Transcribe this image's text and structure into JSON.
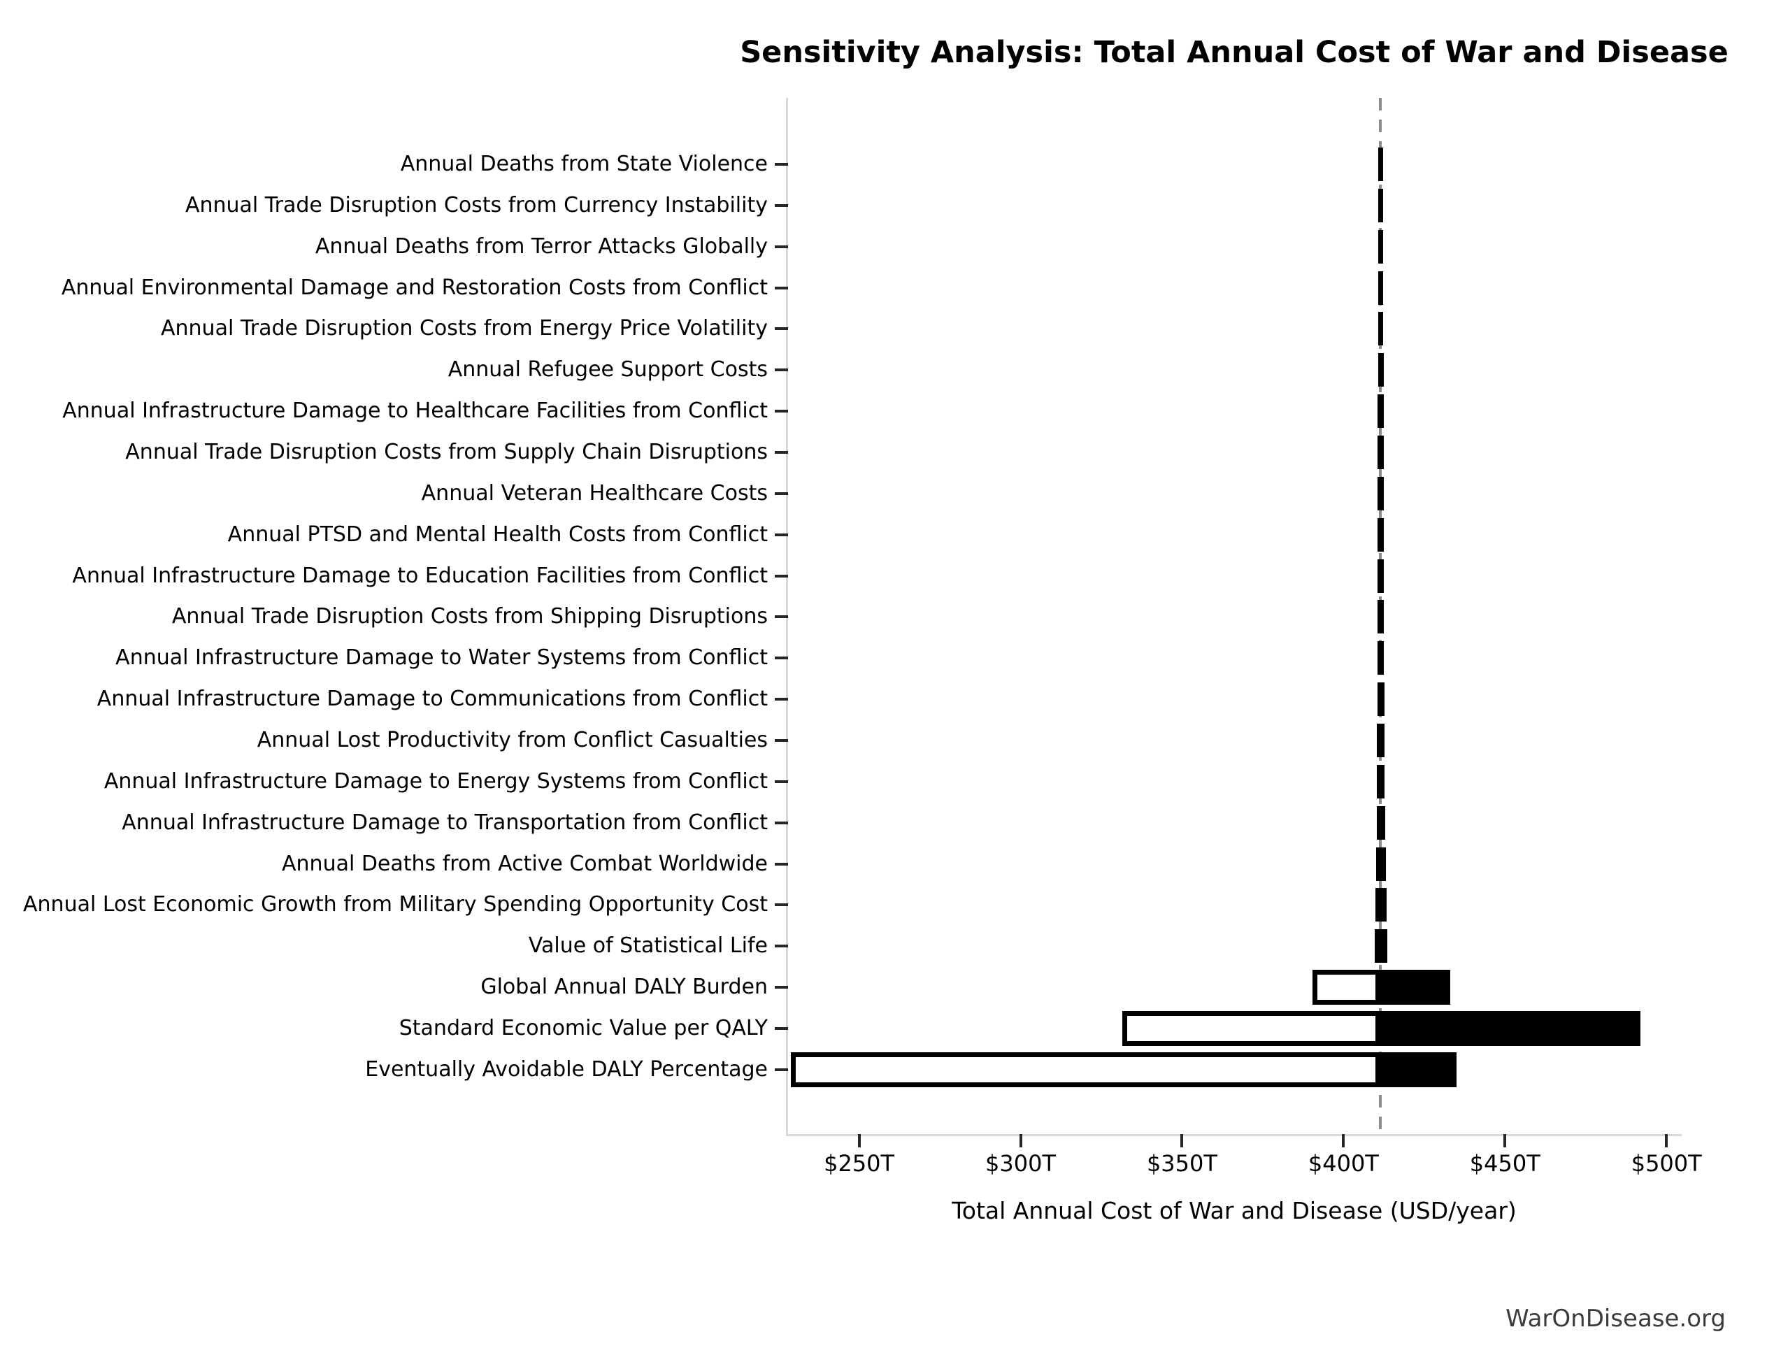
{
  "title": "Sensitivity Analysis: Total Annual Cost of War and Disease",
  "watermark": "WarOnDisease.org",
  "chart_data": {
    "type": "bar",
    "subtype": "tornado-sensitivity",
    "orientation": "horizontal",
    "title": "Sensitivity Analysis: Total Annual Cost of War and Disease",
    "xlabel": "Total Annual Cost of War and Disease (USD/year)",
    "x_unit": "trillion USD per year",
    "xlim": [
      228,
      504.5
    ],
    "x_ticks": [
      250,
      300,
      350,
      400,
      450,
      500
    ],
    "x_tick_labels": [
      "$250T",
      "$300T",
      "$350T",
      "$400T",
      "$450T",
      "$500T"
    ],
    "baseline_value": 411.5,
    "baseline_style": "dashed",
    "grid": false,
    "legend": "none",
    "colors": {
      "low_fill": "#ffffff",
      "high_fill": "#000000",
      "bar_edge": "#000000",
      "baseline_line": "#8c8c8c",
      "spine": "#d9d9d9",
      "tick": "#262626",
      "text": "#000000",
      "watermark_text": "#3c3c3c"
    },
    "categories": [
      {
        "label": "Annual Deaths from State Violence",
        "low": 410.8,
        "high": 412.2
      },
      {
        "label": "Annual Trade Disruption Costs from Currency Instability",
        "low": 410.8,
        "high": 412.3
      },
      {
        "label": "Annual Deaths from Terror Attacks Globally",
        "low": 410.7,
        "high": 412.3
      },
      {
        "label": "Annual Environmental Damage and Restoration Costs from Conflict",
        "low": 410.7,
        "high": 412.3
      },
      {
        "label": "Annual Trade Disruption Costs from Energy Price Volatility",
        "low": 410.7,
        "high": 412.3
      },
      {
        "label": "Annual Refugee Support Costs",
        "low": 410.7,
        "high": 412.4
      },
      {
        "label": "Annual Infrastructure Damage to Healthcare Facilities from Conflict",
        "low": 410.6,
        "high": 412.4
      },
      {
        "label": "Annual Trade Disruption Costs from Supply Chain Disruptions",
        "low": 410.6,
        "high": 412.4
      },
      {
        "label": "Annual Veteran Healthcare Costs",
        "low": 410.6,
        "high": 412.4
      },
      {
        "label": "Annual PTSD and Mental Health Costs from Conflict",
        "low": 410.6,
        "high": 412.5
      },
      {
        "label": "Annual Infrastructure Damage to Education Facilities from Conflict",
        "low": 410.5,
        "high": 412.5
      },
      {
        "label": "Annual Trade Disruption Costs from Shipping Disruptions",
        "low": 410.5,
        "high": 412.5
      },
      {
        "label": "Annual Infrastructure Damage to Water Systems from Conflict",
        "low": 410.5,
        "high": 412.5
      },
      {
        "label": "Annual Infrastructure Damage to Communications from Conflict",
        "low": 410.5,
        "high": 412.6
      },
      {
        "label": "Annual Lost Productivity from Conflict Casualties",
        "low": 410.4,
        "high": 412.6
      },
      {
        "label": "Annual Infrastructure Damage to Energy Systems from Conflict",
        "low": 410.4,
        "high": 412.6
      },
      {
        "label": "Annual Infrastructure Damage to Transportation from Conflict",
        "low": 410.3,
        "high": 412.9
      },
      {
        "label": "Annual Deaths from Active Combat Worldwide",
        "low": 410.2,
        "high": 413.1
      },
      {
        "label": "Annual Lost Economic Growth from Military Spending Opportunity Cost",
        "low": 409.9,
        "high": 413.3
      },
      {
        "label": "Value of Statistical Life",
        "low": 409.7,
        "high": 413.5
      },
      {
        "label": "Global Annual DALY Burden",
        "low": 390.5,
        "high": 433.0
      },
      {
        "label": "Standard Economic Value per QALY",
        "low": 331.5,
        "high": 492.0
      },
      {
        "label": "Eventually Avoidable DALY Percentage",
        "low": 228.8,
        "high": 435.0
      }
    ]
  }
}
